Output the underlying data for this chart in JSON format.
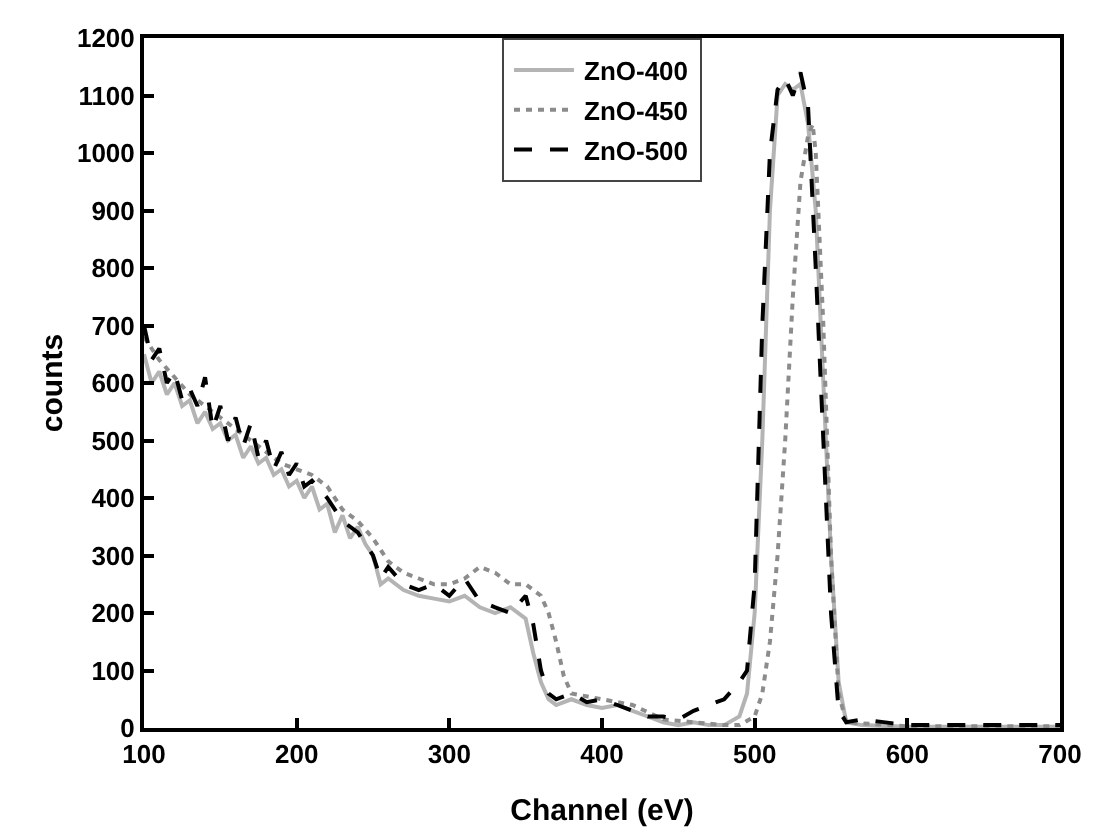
{
  "chart_data": {
    "type": "line",
    "xlabel": "Channel (eV)",
    "ylabel": "counts",
    "xlim": [
      100,
      700
    ],
    "ylim": [
      0,
      1200
    ],
    "xticks": [
      100,
      200,
      300,
      400,
      500,
      600,
      700
    ],
    "yticks": [
      0,
      100,
      200,
      300,
      400,
      500,
      600,
      700,
      800,
      900,
      1000,
      1100,
      1200
    ],
    "grid": false,
    "legend": "top",
    "marker": "none",
    "series": [
      {
        "name": "ZnO-400",
        "color": "#b4b4b4",
        "line_style": "solid",
        "x": [
          100,
          105,
          110,
          115,
          120,
          125,
          130,
          135,
          140,
          145,
          150,
          155,
          160,
          165,
          170,
          175,
          180,
          185,
          190,
          195,
          200,
          205,
          210,
          215,
          220,
          225,
          230,
          235,
          240,
          245,
          250,
          255,
          260,
          270,
          280,
          290,
          300,
          310,
          320,
          330,
          340,
          350,
          355,
          360,
          365,
          370,
          380,
          390,
          400,
          410,
          420,
          430,
          440,
          450,
          460,
          470,
          480,
          490,
          495,
          500,
          505,
          510,
          515,
          520,
          525,
          530,
          535,
          540,
          545,
          550,
          555,
          560,
          570,
          600,
          650,
          700
        ],
        "values": [
          650,
          600,
          620,
          580,
          600,
          560,
          570,
          530,
          550,
          520,
          530,
          500,
          510,
          470,
          490,
          460,
          470,
          440,
          450,
          420,
          430,
          400,
          420,
          380,
          390,
          340,
          370,
          330,
          350,
          320,
          300,
          250,
          260,
          240,
          230,
          225,
          220,
          230,
          210,
          200,
          210,
          190,
          130,
          80,
          50,
          40,
          50,
          40,
          35,
          40,
          30,
          20,
          10,
          5,
          10,
          5,
          5,
          20,
          60,
          200,
          500,
          900,
          1100,
          1120,
          1110,
          1120,
          1050,
          900,
          600,
          300,
          80,
          10,
          5,
          2,
          2,
          2
        ]
      },
      {
        "name": "ZnO-450",
        "color": "#8c8c8c",
        "line_style": "dotted",
        "x": [
          100,
          110,
          120,
          130,
          140,
          150,
          160,
          170,
          180,
          190,
          200,
          210,
          220,
          230,
          240,
          250,
          260,
          270,
          280,
          290,
          300,
          310,
          320,
          330,
          340,
          350,
          360,
          365,
          370,
          375,
          380,
          400,
          420,
          440,
          460,
          480,
          490,
          500,
          505,
          510,
          515,
          520,
          525,
          530,
          535,
          538,
          540,
          545,
          550,
          555,
          560,
          600,
          700
        ],
        "values": [
          680,
          640,
          610,
          580,
          560,
          540,
          520,
          500,
          480,
          460,
          450,
          440,
          420,
          380,
          360,
          330,
          290,
          270,
          260,
          250,
          250,
          260,
          280,
          270,
          250,
          250,
          230,
          200,
          150,
          90,
          60,
          50,
          40,
          15,
          10,
          5,
          5,
          20,
          60,
          150,
          300,
          500,
          750,
          950,
          1030,
          1050,
          1000,
          700,
          300,
          60,
          10,
          3,
          3
        ]
      },
      {
        "name": "ZnO-500",
        "color": "#000000",
        "line_style": "dashed",
        "x": [
          100,
          105,
          110,
          115,
          120,
          125,
          130,
          135,
          140,
          145,
          150,
          155,
          160,
          165,
          170,
          175,
          180,
          185,
          190,
          195,
          200,
          205,
          210,
          220,
          230,
          240,
          250,
          255,
          260,
          270,
          280,
          290,
          300,
          310,
          320,
          330,
          340,
          350,
          355,
          360,
          365,
          370,
          380,
          390,
          400,
          410,
          420,
          430,
          440,
          450,
          460,
          470,
          480,
          490,
          495,
          500,
          505,
          510,
          515,
          520,
          525,
          530,
          535,
          540,
          545,
          550,
          555,
          560,
          570,
          600,
          700
        ],
        "values": [
          700,
          640,
          660,
          600,
          620,
          570,
          590,
          560,
          610,
          520,
          560,
          500,
          540,
          490,
          530,
          470,
          500,
          450,
          480,
          440,
          460,
          420,
          430,
          400,
          360,
          340,
          300,
          260,
          280,
          250,
          240,
          250,
          230,
          260,
          220,
          210,
          200,
          230,
          180,
          100,
          60,
          50,
          60,
          45,
          50,
          40,
          30,
          20,
          20,
          15,
          30,
          40,
          50,
          80,
          100,
          250,
          700,
          1000,
          1110,
          1130,
          1100,
          1140,
          1080,
          800,
          500,
          200,
          30,
          10,
          15,
          5,
          5
        ]
      }
    ]
  }
}
